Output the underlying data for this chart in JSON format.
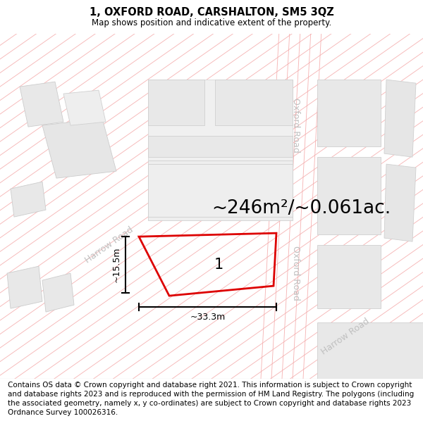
{
  "title": "1, OXFORD ROAD, CARSHALTON, SM5 3QZ",
  "subtitle": "Map shows position and indicative extent of the property.",
  "footer": "Contains OS data © Crown copyright and database right 2021. This information is subject to Crown copyright and database rights 2023 and is reproduced with the permission of HM Land Registry. The polygons (including the associated geometry, namely x, y co-ordinates) are subject to Crown copyright and database rights 2023 Ordnance Survey 100026316.",
  "area_text": "~246m²/~0.061ac.",
  "plot_number": "1",
  "dim_width": "~33.3m",
  "dim_height": "~15.5m",
  "map_bg": "#ffffff",
  "plot_color": "#dd0000",
  "road_label_color": "#c0c0c0",
  "block_light": "#ebebeb",
  "block_mid": "#e2e2e2",
  "block_border": "#cccccc",
  "road_pink": "#f5aaaa",
  "road_pink2": "#f0c0c0",
  "title_fontsize": 10.5,
  "subtitle_fontsize": 8.5,
  "footer_fontsize": 7.5,
  "area_fontsize": 19,
  "plot_num_fontsize": 15,
  "dim_fontsize": 9
}
